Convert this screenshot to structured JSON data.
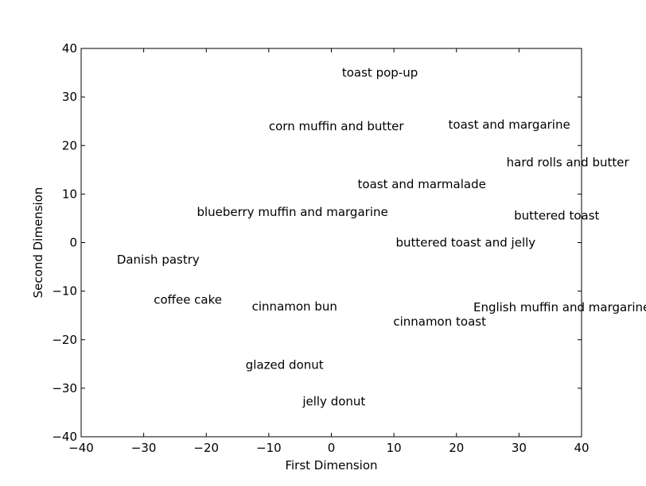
{
  "chart_data": {
    "type": "scatter",
    "xlabel": "First Dimension",
    "ylabel": "Second Dimension",
    "xlim": [
      -40,
      40
    ],
    "ylim": [
      -40,
      40
    ],
    "xticks": [
      -40,
      -30,
      -20,
      -10,
      0,
      10,
      20,
      30,
      40
    ],
    "yticks": [
      -40,
      -30,
      -20,
      -10,
      0,
      10,
      20,
      30,
      40
    ],
    "xtick_labels": [
      "−40",
      "−30",
      "−20",
      "−10",
      "0",
      "10",
      "20",
      "30",
      "40"
    ],
    "ytick_labels": [
      "−40",
      "−30",
      "−20",
      "−10",
      "0",
      "10",
      "20",
      "30",
      "40"
    ],
    "grid": false,
    "points": [
      {
        "label": "toast pop-up",
        "x": 1.7,
        "y": 35
      },
      {
        "label": "corn muffin and butter",
        "x": -10,
        "y": 24
      },
      {
        "label": "toast and margarine",
        "x": 18.7,
        "y": 24.3
      },
      {
        "label": "hard rolls and butter",
        "x": 28,
        "y": 16.5
      },
      {
        "label": "toast and marmalade",
        "x": 4.2,
        "y": 12
      },
      {
        "label": "blueberry muffin and margarine",
        "x": -21.5,
        "y": 6.3
      },
      {
        "label": "buttered toast",
        "x": 29.2,
        "y": 5.6
      },
      {
        "label": "buttered toast and jelly",
        "x": 10.3,
        "y": 0
      },
      {
        "label": "Danish pastry",
        "x": -34.3,
        "y": -3.5
      },
      {
        "label": "coffee cake",
        "x": -28.4,
        "y": -11.8
      },
      {
        "label": "cinnamon bun",
        "x": -12.7,
        "y": -13.2
      },
      {
        "label": "English muffin and margarine",
        "x": 22.7,
        "y": -13.3
      },
      {
        "label": "cinnamon toast",
        "x": 9.9,
        "y": -16.3
      },
      {
        "label": "glazed donut",
        "x": -13.7,
        "y": -25.2
      },
      {
        "label": "jelly donut",
        "x": -4.6,
        "y": -32.7
      }
    ]
  }
}
